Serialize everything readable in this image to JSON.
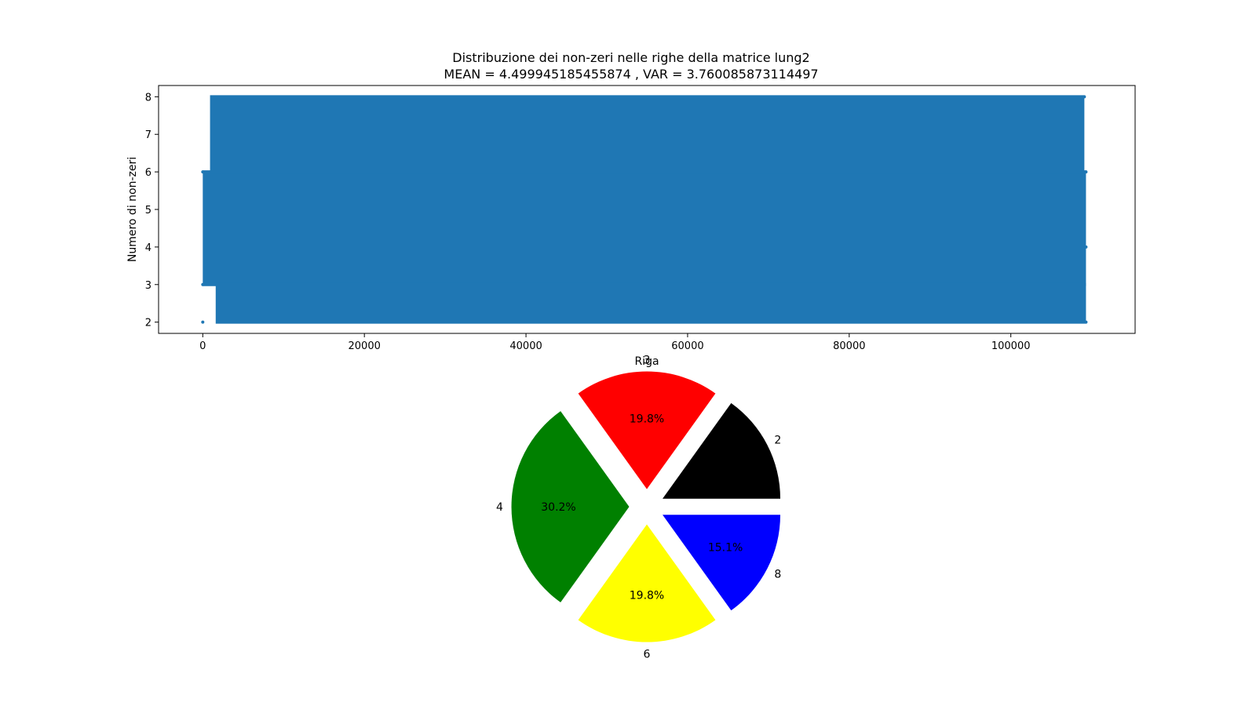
{
  "figure_colors": {
    "background": "#ffffff",
    "series": "#1f77b4",
    "axes": "#000000"
  },
  "chart_data": [
    {
      "type": "scatter",
      "title": "Distribuzione dei non-zeri nelle righe della matrice lung2",
      "subtitle": "MEAN = 4.499945185455874 , VAR = 3.760085873114497",
      "xlabel": "Riga",
      "ylabel": "Numero di non-zeri",
      "xlim": [
        -5470,
        115380
      ],
      "ylim": [
        1.7,
        8.3
      ],
      "xticks": [
        0,
        20000,
        40000,
        60000,
        80000,
        100000
      ],
      "xtick_labels": [
        "0",
        "20000",
        "40000",
        "60000",
        "80000",
        "100000"
      ],
      "yticks": [
        2,
        3,
        4,
        5,
        6,
        7,
        8
      ],
      "ytick_labels": [
        "2",
        "3",
        "4",
        "5",
        "6",
        "7",
        "8"
      ],
      "grid": false,
      "series": [
        {
          "color": "#1f77b4",
          "bands": [
            {
              "x_start": 0,
              "x_end": 109300,
              "y_min": 3,
              "y_max": 6
            },
            {
              "x_start": 900,
              "x_end": 109100,
              "y_min": 6,
              "y_max": 8
            },
            {
              "x_start": 1600,
              "x_end": 109300,
              "y_min": 2,
              "y_max": 3
            }
          ],
          "points": [
            {
              "x": 0,
              "y": 2
            },
            {
              "x": 0,
              "y": 3
            },
            {
              "x": 0,
              "y": 6
            },
            {
              "x": 109300,
              "y": 2
            },
            {
              "x": 109300,
              "y": 4
            },
            {
              "x": 109300,
              "y": 6
            },
            {
              "x": 109100,
              "y": 8
            }
          ]
        }
      ]
    },
    {
      "type": "pie",
      "categories": [
        "2",
        "3",
        "4",
        "6",
        "8"
      ],
      "values": [
        15.1,
        19.8,
        30.2,
        19.8,
        15.1
      ],
      "labels": [
        "2",
        "3",
        "4",
        "6",
        "8"
      ],
      "autopct_labels": [
        "",
        "19.8%",
        "30.2%",
        "19.8%",
        "15.1%"
      ],
      "colors": [
        "#000000",
        "#ff0000",
        "#008000",
        "#ffff00",
        "#0000ff"
      ],
      "exploded": true
    }
  ]
}
